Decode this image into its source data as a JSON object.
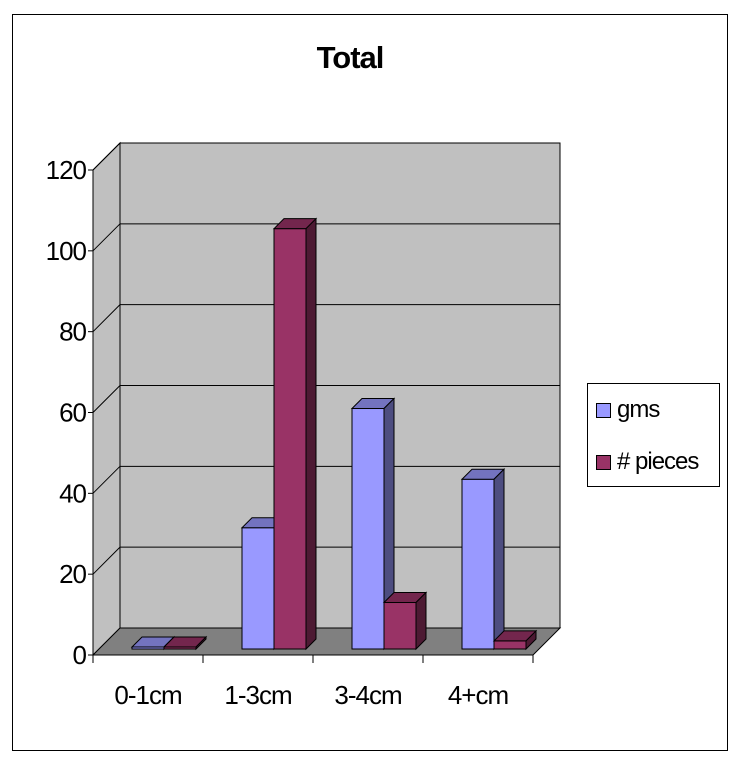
{
  "chart_data": {
    "type": "bar",
    "title": "Total",
    "categories": [
      "0-1cm",
      "1-3cm",
      "3-4cm",
      "4+cm"
    ],
    "series": [
      {
        "name": "gms",
        "values": [
          0.5,
          30,
          59.5,
          42
        ],
        "color": "#9999ff"
      },
      {
        "name": "# pieces",
        "values": [
          0.5,
          104,
          11.5,
          2
        ],
        "color": "#993366"
      }
    ],
    "yticks": [
      0,
      20,
      40,
      60,
      80,
      100,
      120
    ],
    "ylim": [
      0,
      120
    ],
    "grid": true,
    "legend": "right",
    "style": "3d-clustered-column",
    "wall_color": "#c0c0c0"
  }
}
